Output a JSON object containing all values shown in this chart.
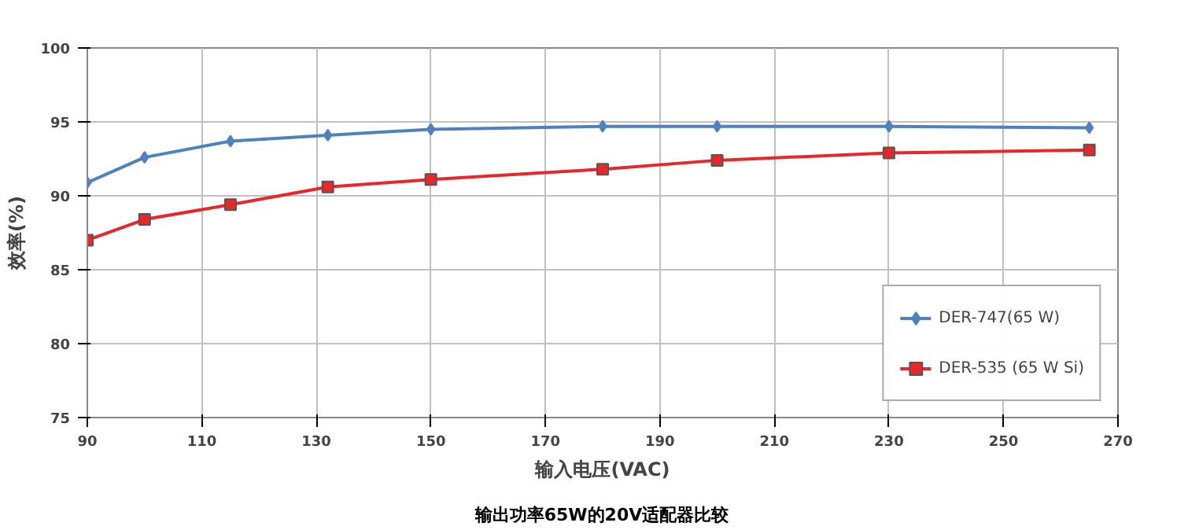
{
  "chart_data": {
    "type": "line",
    "xlabel": "输入电压(VAC)",
    "ylabel": "效率(%)",
    "annotations": [
      "输出功率65W的20V适配器比较"
    ],
    "x": [
      90,
      100,
      115,
      132,
      150,
      180,
      200,
      230,
      265
    ],
    "series": [
      {
        "name": "DER-747(65 W)",
        "color": "#4f81bd",
        "marker": "diamond",
        "values": [
          90.9,
          92.6,
          93.7,
          94.1,
          94.5,
          94.7,
          94.7,
          94.7,
          94.6
        ]
      },
      {
        "name": "DER-535 (65 W Si)",
        "color": "#e8272a",
        "marker": "square",
        "values": [
          87.0,
          88.4,
          89.4,
          90.6,
          91.1,
          91.8,
          92.4,
          92.9,
          93.1
        ]
      }
    ],
    "xlim": [
      90,
      270
    ],
    "xticks": [
      90,
      110,
      130,
      150,
      170,
      190,
      210,
      230,
      250,
      270
    ],
    "ylim": [
      75,
      100
    ],
    "yticks": [
      75,
      80,
      85,
      90,
      95,
      100
    ],
    "grid": true,
    "legend": "bottom right",
    "line_style": "solid"
  }
}
